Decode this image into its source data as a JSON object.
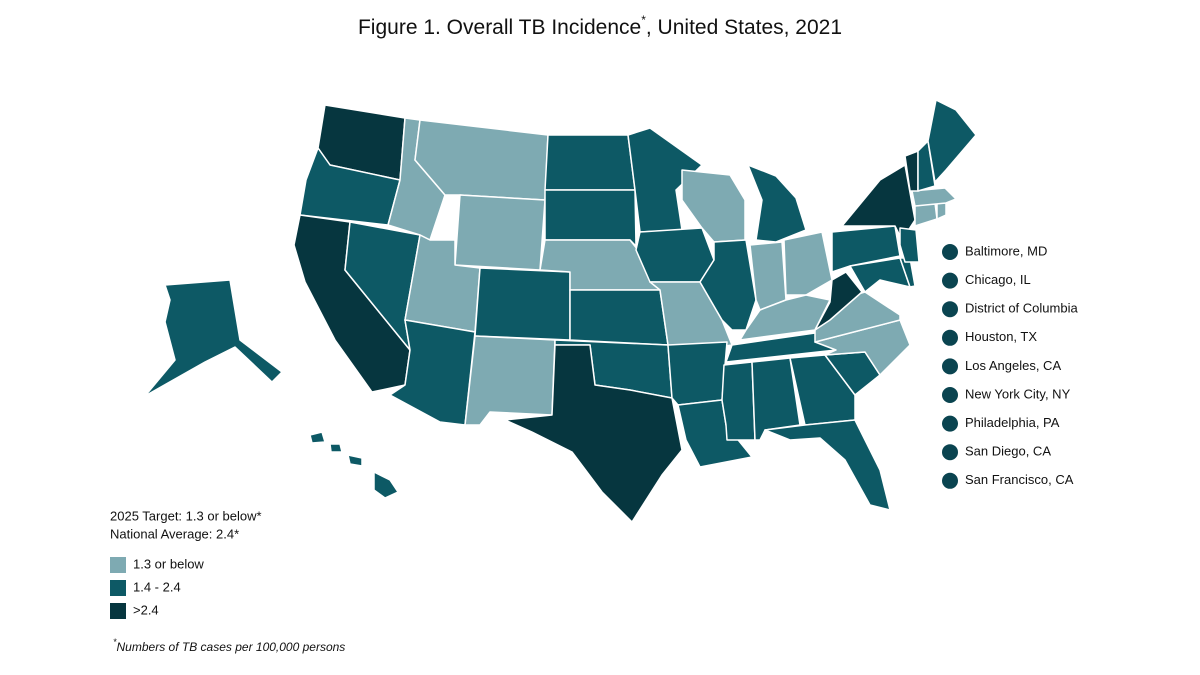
{
  "title": {
    "text": "Figure 1. Overall TB Incidence",
    "mark": "*",
    "rest": ", United States, 2021"
  },
  "notes": [
    "2025 Target: 1.3 or below*",
    "National Average: 2.4*"
  ],
  "legend": [
    {
      "label": "1.3 or below",
      "color": "#7eaab2"
    },
    {
      "label": "1.4 - 2.4",
      "color": "#0d5965"
    },
    {
      "label": ">2.4",
      "color": "#06363f"
    }
  ],
  "cities": {
    "color": "#0a4450",
    "labels": [
      "Baltimore, MD",
      "Chicago, IL",
      "District of Columbia",
      "Houston, TX",
      "Los Angeles, CA",
      "New York City, NY",
      "Philadelphia, PA",
      "San Diego, CA",
      "San Francisco, CA"
    ]
  },
  "footnote": {
    "mark": "*",
    "text": "Numbers of TB cases per 100,000 persons"
  },
  "map": {
    "regions": [
      2,
      1,
      2,
      1,
      0,
      0,
      0,
      0,
      1,
      1,
      0,
      1,
      1,
      0,
      1,
      1,
      2,
      1,
      1,
      0,
      1,
      1,
      0,
      1,
      1,
      0,
      0,
      0,
      1,
      1,
      1,
      1,
      1,
      1,
      0,
      0,
      2,
      1,
      2,
      1,
      1,
      1,
      0,
      0,
      0,
      2,
      1,
      1,
      1,
      1
    ]
  }
}
